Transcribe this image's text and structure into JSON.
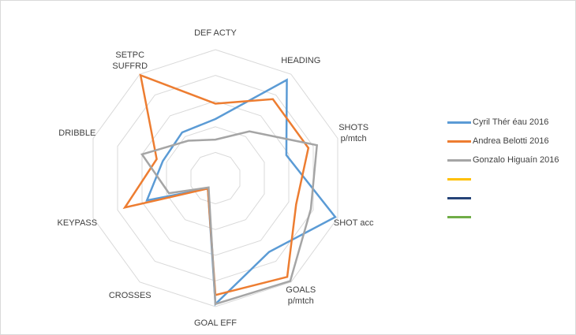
{
  "chart_data": {
    "type": "radar",
    "title": "",
    "axes": [
      "DEF ACTY",
      "HEADING",
      "SHOTS\np/mtch",
      "SHOT acc",
      "GOALS\np/mtch",
      "GOAL EFF",
      "CROSSES",
      "KEYPASS",
      "DRIBBLE",
      "SETPC\nSUFFRD"
    ],
    "range": [
      0,
      1
    ],
    "gridlines": 5,
    "series": [
      {
        "name": "Cyril Thér éau 2016",
        "color": "#5b9bd5",
        "values": [
          0.46,
          0.945,
          0.58,
          0.98,
          0.71,
          0.98,
          0.1,
          0.56,
          0.43,
          0.44
        ]
      },
      {
        "name": "Andrea Belotti 2016",
        "color": "#ed7d31",
        "values": [
          0.58,
          0.76,
          0.76,
          0.66,
          0.95,
          0.91,
          0.1,
          0.74,
          0.48,
          0.99
        ]
      },
      {
        "name": "Gonzalo Higuaín 2016",
        "color": "#a5a5a5",
        "values": [
          0.3,
          0.45,
          0.83,
          0.78,
          0.99,
          0.98,
          0.09,
          0.38,
          0.6,
          0.36
        ]
      },
      {
        "name": "",
        "color": "#ffc000",
        "values": []
      },
      {
        "name": "",
        "color": "#264478",
        "values": []
      },
      {
        "name": "",
        "color": "#70ad47",
        "values": []
      }
    ],
    "legend_position": "right"
  }
}
